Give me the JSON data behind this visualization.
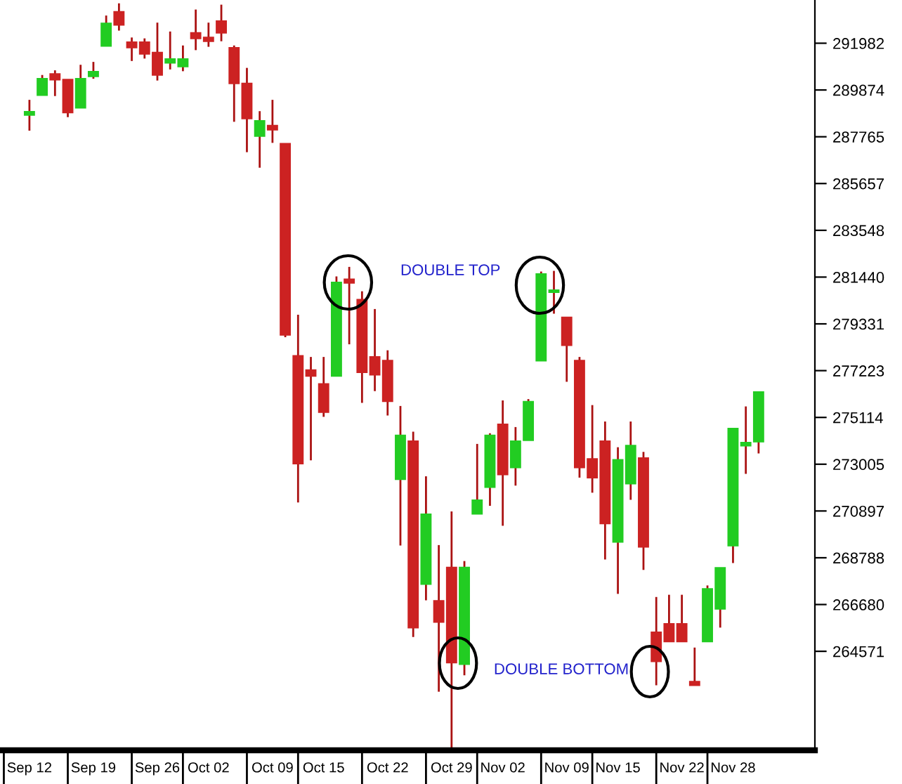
{
  "chart_data": {
    "type": "candlestick",
    "categories": [
      "Sep 12",
      null,
      null,
      null,
      null,
      "Sep 19",
      null,
      null,
      null,
      null,
      "Sep 26",
      null,
      null,
      null,
      "Oct 02",
      null,
      null,
      null,
      null,
      "Oct 09",
      null,
      null,
      null,
      "Oct 15",
      null,
      null,
      null,
      null,
      "Oct 22",
      null,
      null,
      null,
      null,
      "Oct 29",
      null,
      null,
      null,
      "Nov 02",
      null,
      null,
      null,
      null,
      "Nov 09",
      null,
      null,
      null,
      "Nov 15",
      null,
      null,
      null,
      null,
      "Nov 22",
      null,
      null,
      null,
      "Nov 28",
      null,
      null
    ],
    "ohlc": [
      [
        288750,
        289430,
        288040,
        288890
      ],
      [
        289640,
        290550,
        289640,
        290380
      ],
      [
        290590,
        290760,
        289600,
        290340
      ],
      [
        290340,
        290340,
        288650,
        288860
      ],
      [
        289070,
        291010,
        289070,
        290380
      ],
      [
        290490,
        291140,
        290380,
        290700
      ],
      [
        291860,
        293230,
        291860,
        292870
      ],
      [
        293400,
        293780,
        292550,
        292810
      ],
      [
        292030,
        292240,
        291180,
        291790
      ],
      [
        292030,
        292200,
        291290,
        291500
      ],
      [
        291560,
        292910,
        290300,
        290550
      ],
      [
        291100,
        292510,
        290800,
        291270
      ],
      [
        290930,
        291880,
        290720,
        291270
      ],
      [
        292450,
        293500,
        291670,
        292200
      ],
      [
        292240,
        292910,
        291820,
        292070
      ],
      [
        292980,
        293720,
        292070,
        292450
      ],
      [
        291770,
        291880,
        288440,
        290170
      ],
      [
        290170,
        290870,
        287070,
        288590
      ],
      [
        287800,
        288920,
        286370,
        288480
      ],
      [
        288270,
        289430,
        287490,
        288080
      ],
      [
        287450,
        287450,
        278730,
        278840
      ],
      [
        277890,
        279740,
        271280,
        273030
      ],
      [
        277250,
        277840,
        273180,
        276980
      ],
      [
        276620,
        277840,
        275140,
        275350
      ],
      [
        276980,
        281470,
        276980,
        281200
      ],
      [
        281340,
        281900,
        278410,
        281180
      ],
      [
        280420,
        280800,
        275770,
        277150
      ],
      [
        277840,
        280000,
        276300,
        277040
      ],
      [
        277670,
        278140,
        275200,
        275840
      ],
      [
        272330,
        275630,
        269340,
        274300
      ],
      [
        274040,
        274470,
        265220,
        265640
      ],
      [
        267600,
        272460,
        266870,
        270750
      ],
      [
        266840,
        269360,
        262750,
        265890
      ],
      [
        268350,
        270880,
        260200,
        264060
      ],
      [
        263990,
        268640,
        263490,
        268350
      ],
      [
        270770,
        273920,
        270770,
        271380
      ],
      [
        271970,
        274400,
        271130,
        274300
      ],
      [
        274800,
        275880,
        270230,
        272540
      ],
      [
        272860,
        274680,
        272040,
        274040
      ],
      [
        274090,
        275940,
        274090,
        275820
      ],
      [
        277670,
        281690,
        277670,
        281580
      ],
      [
        280760,
        281720,
        279790,
        280850
      ],
      [
        279620,
        279620,
        276720,
        278370
      ],
      [
        277670,
        277840,
        272400,
        272860
      ],
      [
        273240,
        275670,
        271720,
        272400
      ],
      [
        274040,
        274930,
        268710,
        270330
      ],
      [
        269500,
        273770,
        267160,
        273200
      ],
      [
        272130,
        274930,
        271400,
        273840
      ],
      [
        273280,
        273560,
        268240,
        269280
      ],
      [
        265430,
        267020,
        263040,
        264120
      ],
      [
        265810,
        267120,
        265010,
        265010
      ],
      [
        265810,
        267120,
        265010,
        265010
      ],
      [
        263200,
        264740,
        263040,
        263040
      ],
      [
        265010,
        267540,
        265010,
        267380
      ],
      [
        266490,
        268330,
        265640,
        268330
      ],
      [
        269340,
        274610,
        268550,
        274610
      ],
      [
        273840,
        275610,
        272570,
        273980
      ],
      [
        274020,
        276260,
        273490,
        276260
      ]
    ],
    "colors": [
      "#22cc22",
      "#22cc22",
      "#cc2222",
      "#cc2222",
      "#22cc22",
      "#22cc22",
      "#22cc22",
      "#cc2222",
      "#cc2222",
      "#cc2222",
      "#cc2222",
      "#22cc22",
      "#22cc22",
      "#cc2222",
      "#cc2222",
      "#cc2222",
      "#cc2222",
      "#cc2222",
      "#22cc22",
      "#cc2222",
      "#cc2222",
      "#cc2222",
      "#cc2222",
      "#cc2222",
      "#22cc22",
      "#cc2222",
      "#cc2222",
      "#cc2222",
      "#cc2222",
      "#22cc22",
      "#cc2222",
      "#22cc22",
      "#cc2222",
      "#cc2222",
      "#22cc22",
      "#22cc22",
      "#22cc22",
      "#cc2222",
      "#22cc22",
      "#22cc22",
      "#22cc22",
      "#22cc22",
      "#cc2222",
      "#cc2222",
      "#cc2222",
      "#cc2222",
      "#22cc22",
      "#22cc22",
      "#cc2222",
      "#cc2222",
      "#cc2222",
      "#cc2222",
      "#cc2222",
      "#22cc22",
      "#22cc22",
      "#22cc22",
      "#22cc22",
      "#22cc22"
    ],
    "ylim": [
      260110,
      293930
    ],
    "yticks": [
      291982,
      289874,
      287765,
      285657,
      283548,
      281440,
      279331,
      277223,
      275114,
      273005,
      270897,
      268788,
      266680,
      264571
    ],
    "annotations": [
      "DOUBLE TOP",
      "DOUBLE BOTTOM"
    ],
    "grid": false
  }
}
